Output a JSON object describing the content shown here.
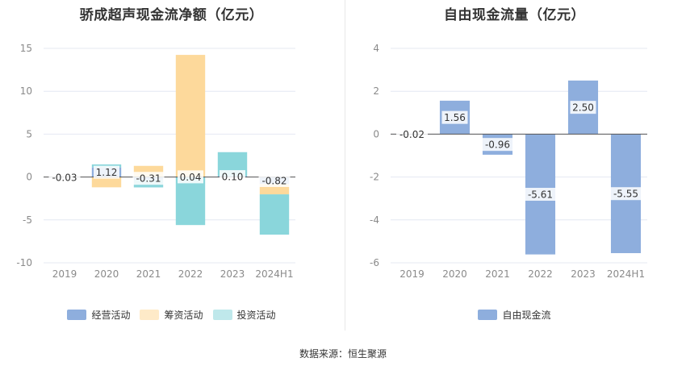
{
  "footer": {
    "source": "数据来源：恒生聚源"
  },
  "chart_data": [
    {
      "type": "bar",
      "stacked": true,
      "title": "骄成超声现金流净额（亿元）",
      "categories": [
        "2019",
        "2020",
        "2021",
        "2022",
        "2023",
        "2024H1"
      ],
      "ylim": [
        -10,
        15
      ],
      "yticks": [
        -10,
        -5,
        0,
        5,
        10,
        15
      ],
      "ytick_labels": [
        "-10",
        "-5",
        "0",
        "5",
        "10",
        "15"
      ],
      "grid": true,
      "legend_position": "bottom",
      "series": [
        {
          "name": "经营活动",
          "color": "#8eaedd",
          "values": [
            -0.03,
            1.12,
            -0.31,
            0.04,
            0.1,
            -0.82
          ]
        },
        {
          "name": "筹资活动",
          "color": "#fdd99b",
          "values": [
            0,
            -1.2,
            1.3,
            14.2,
            0,
            -1.2
          ]
        },
        {
          "name": "投资活动",
          "color": "#8ad6db",
          "values": [
            0,
            0.35,
            -0.9,
            -5.6,
            2.8,
            -4.7
          ]
        }
      ],
      "data_labels": [
        "-0.03",
        "1.12",
        "-0.31",
        "0.04",
        "0.10",
        "-0.82"
      ]
    },
    {
      "type": "bar",
      "title": "自由现金流量（亿元）",
      "categories": [
        "2019",
        "2020",
        "2021",
        "2022",
        "2023",
        "2024H1"
      ],
      "ylim": [
        -6,
        4
      ],
      "yticks": [
        -6,
        -4,
        -2,
        0,
        2,
        4
      ],
      "ytick_labels": [
        "-6",
        "-4",
        "-2",
        "0",
        "2",
        "4"
      ],
      "grid": true,
      "legend_position": "bottom",
      "series": [
        {
          "name": "自由现金流",
          "color": "#8eaedd",
          "values": [
            -0.02,
            1.56,
            -0.96,
            -5.61,
            2.5,
            -5.55
          ]
        }
      ],
      "data_labels": [
        "-0.02",
        "1.56",
        "-0.96",
        "-5.61",
        "2.50",
        "-5.55"
      ]
    }
  ]
}
